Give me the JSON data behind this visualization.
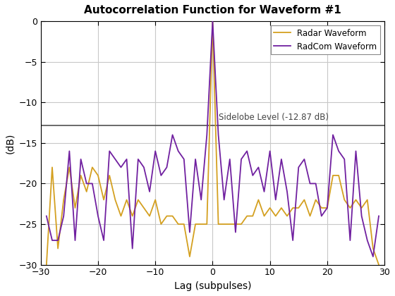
{
  "title": "Autocorrelation Function for Waveform #1",
  "xlabel": "Lag (subpulses)",
  "ylabel": "(dB)",
  "xlim": [
    -30,
    30
  ],
  "ylim": [
    -30,
    0
  ],
  "yticks": [
    0,
    -5,
    -10,
    -15,
    -20,
    -25,
    -30
  ],
  "xticks": [
    -30,
    -20,
    -10,
    0,
    10,
    20,
    30
  ],
  "sidelobe_level": -12.87,
  "sidelobe_label": "Sidelobe Level (-12.87 dB)",
  "radar_color": "#D4A020",
  "radcom_color": "#7020A0",
  "hline_color": "#505050",
  "legend_labels": [
    "Radar Waveform",
    "RadCom Waveform"
  ],
  "background_color": "#FFFFFF",
  "grid_color": "#C8C8C8",
  "radar_lags": [
    -29,
    -28,
    -27,
    -26,
    -25,
    -24,
    -23,
    -22,
    -21,
    -20,
    -19,
    -18,
    -17,
    -16,
    -15,
    -14,
    -13,
    -12,
    -11,
    -10,
    -9,
    -8,
    -7,
    -6,
    -5,
    -4,
    -3,
    -2,
    -1,
    0,
    1,
    2,
    3,
    4,
    5,
    6,
    7,
    8,
    9,
    10,
    11,
    12,
    13,
    14,
    15,
    16,
    17,
    18,
    19,
    20,
    21,
    22,
    23,
    24,
    25,
    26,
    27,
    28,
    29
  ],
  "radar_vals": [
    -30,
    -18,
    -28,
    -22,
    -18,
    -23,
    -19,
    -21,
    -18,
    -19,
    -22,
    -19,
    -22,
    -24,
    -22,
    -24,
    -22,
    -23,
    -24,
    -22,
    -25,
    -24,
    -24,
    -25,
    -25,
    -29,
    -25,
    -25,
    -25,
    0,
    -25,
    -25,
    -25,
    -25,
    -25,
    -24,
    -24,
    -22,
    -24,
    -23,
    -24,
    -23,
    -24,
    -23,
    -23,
    -22,
    -24,
    -22,
    -23,
    -23,
    -19,
    -19,
    -22,
    -23,
    -22,
    -23,
    -22,
    -28,
    -30
  ],
  "radcom_lags": [
    -29,
    -28,
    -27,
    -26,
    -25,
    -24,
    -23,
    -22,
    -21,
    -20,
    -19,
    -18,
    -17,
    -16,
    -15,
    -14,
    -13,
    -12,
    -11,
    -10,
    -9,
    -8,
    -7,
    -6,
    -5,
    -4,
    -3,
    -2,
    -1,
    0,
    1,
    2,
    3,
    4,
    5,
    6,
    7,
    8,
    9,
    10,
    11,
    12,
    13,
    14,
    15,
    16,
    17,
    18,
    19,
    20,
    21,
    22,
    23,
    24,
    25,
    26,
    27,
    28,
    29
  ],
  "radcom_vals": [
    -24,
    -27,
    -27,
    -24,
    -16,
    -27,
    -17,
    -20,
    -20,
    -24,
    -27,
    -16,
    -17,
    -18,
    -17,
    -28,
    -17,
    -18,
    -21,
    -16,
    -19,
    -18,
    -14,
    -16,
    -17,
    -26,
    -17,
    -22,
    -14,
    0,
    -14,
    -22,
    -17,
    -26,
    -17,
    -16,
    -19,
    -18,
    -21,
    -16,
    -22,
    -17,
    -21,
    -27,
    -18,
    -17,
    -20,
    -20,
    -24,
    -23,
    -14,
    -16,
    -17,
    -27,
    -16,
    -24,
    -27,
    -29,
    -24
  ]
}
